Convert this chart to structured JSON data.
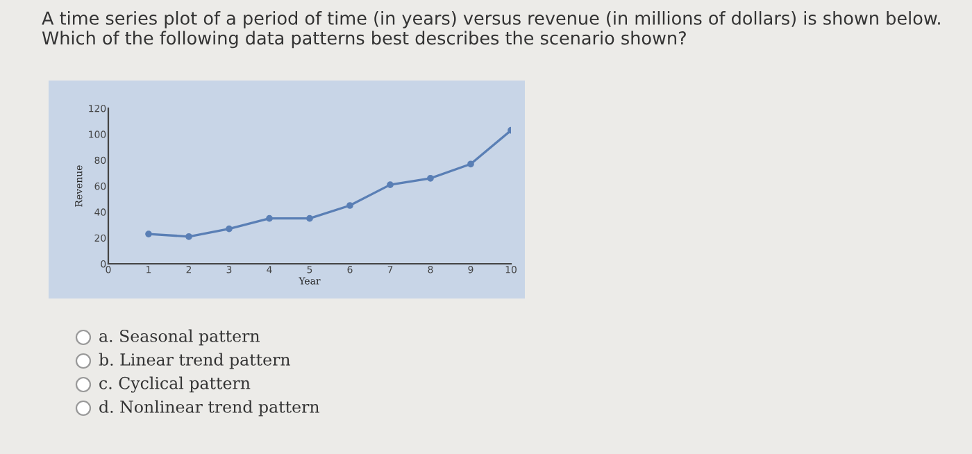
{
  "chart_data": {
    "type": "line",
    "title": "A time series plot of a period of time (in years) versus revenue (in millions of dollars) is shown below.\nWhich of the following data patterns best describes the scenario shown?",
    "xlabel": "Year",
    "ylabel": "Revenue",
    "x": [
      1,
      2,
      3,
      4,
      5,
      6,
      7,
      8,
      9,
      10
    ],
    "series": [
      {
        "color": "#5a7fb5",
        "values": [
          23,
          21,
          27,
          35,
          35,
          45,
          61,
          66,
          77,
          103
        ]
      }
    ],
    "xlim": [
      0,
      10
    ],
    "ylim": [
      0,
      120
    ],
    "xticks": [
      0,
      1,
      2,
      3,
      4,
      5,
      6,
      7,
      8,
      9,
      10
    ],
    "yticks": [
      0,
      20,
      40,
      60,
      80,
      100,
      120
    ],
    "marker": "circle",
    "line_style": "solid",
    "grid": false,
    "legend": false,
    "annotations": [
      "a. Seasonal pattern",
      "b. Linear trend pattern",
      "c. Cyclical pattern",
      "d. Nonlinear trend pattern"
    ]
  }
}
